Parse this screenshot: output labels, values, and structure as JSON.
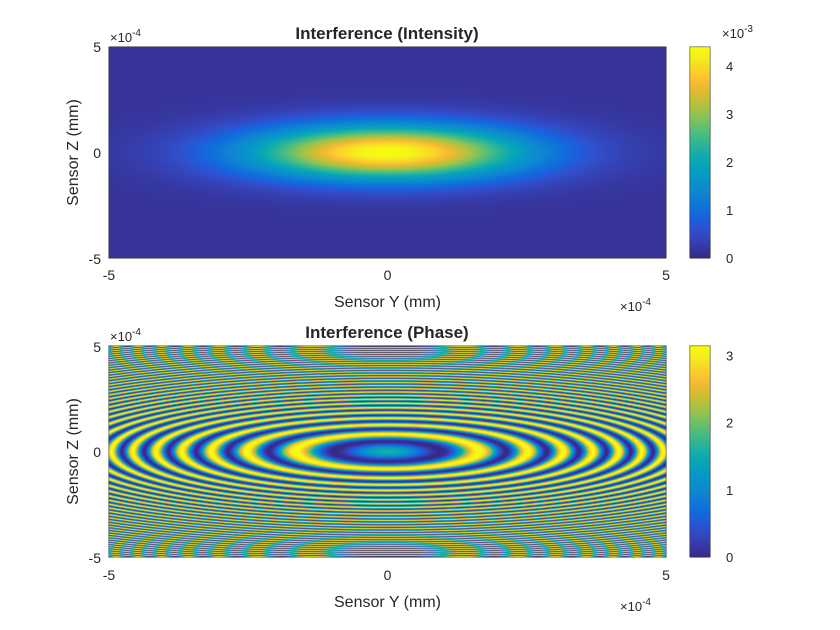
{
  "chart_data": [
    {
      "type": "heatmap",
      "title": "Interference (Intensity)",
      "xlabel": "Sensor Y (mm)",
      "ylabel": "Sensor Z (mm)",
      "xlim": [
        -5,
        5
      ],
      "ylim": [
        -5,
        5
      ],
      "x_ticks": [
        "-5",
        "0",
        "5"
      ],
      "y_ticks": [
        "5",
        "0",
        "-5"
      ],
      "x_exponent": {
        "base": "×10",
        "power": "-4"
      },
      "y_exponent": {
        "base": "×10",
        "power": "-4"
      },
      "colorbar": {
        "limits": [
          0,
          4.4
        ],
        "ticks": [
          "4",
          "3",
          "2",
          "1",
          "0"
        ],
        "tick_values": [
          4,
          3,
          2,
          1,
          0
        ],
        "exponent": {
          "base": "×10",
          "power": "-3"
        }
      },
      "field": {
        "shape": "gaussian",
        "peak": 4.4,
        "center": [
          0,
          0
        ],
        "sigma": [
          1.75,
          0.9
        ],
        "floor": 0.15
      },
      "colormap": "parula"
    },
    {
      "type": "heatmap",
      "title": "Interference (Phase)",
      "xlabel": "Sensor Y (mm)",
      "ylabel": "Sensor Z (mm)",
      "xlim": [
        -5,
        5
      ],
      "ylim": [
        -5,
        5
      ],
      "x_ticks": [
        "-5",
        "0",
        "5"
      ],
      "y_ticks": [
        "5",
        "0",
        "-5"
      ],
      "x_exponent": {
        "base": "×10",
        "power": "-4"
      },
      "y_exponent": {
        "base": "×10",
        "power": "-4"
      },
      "colorbar": {
        "limits": [
          0,
          3.14159
        ],
        "ticks": [
          "3",
          "2",
          "1",
          "0"
        ],
        "tick_values": [
          3,
          2,
          1,
          0
        ],
        "exponent": null
      },
      "field": {
        "shape": "elliptical-rings",
        "center": [
          0,
          0
        ],
        "y_scale": 2.0,
        "ring_coefficient": 0.55,
        "phase_offset": 1.57,
        "range": [
          0,
          3.14159
        ]
      },
      "colormap": "parula"
    }
  ]
}
